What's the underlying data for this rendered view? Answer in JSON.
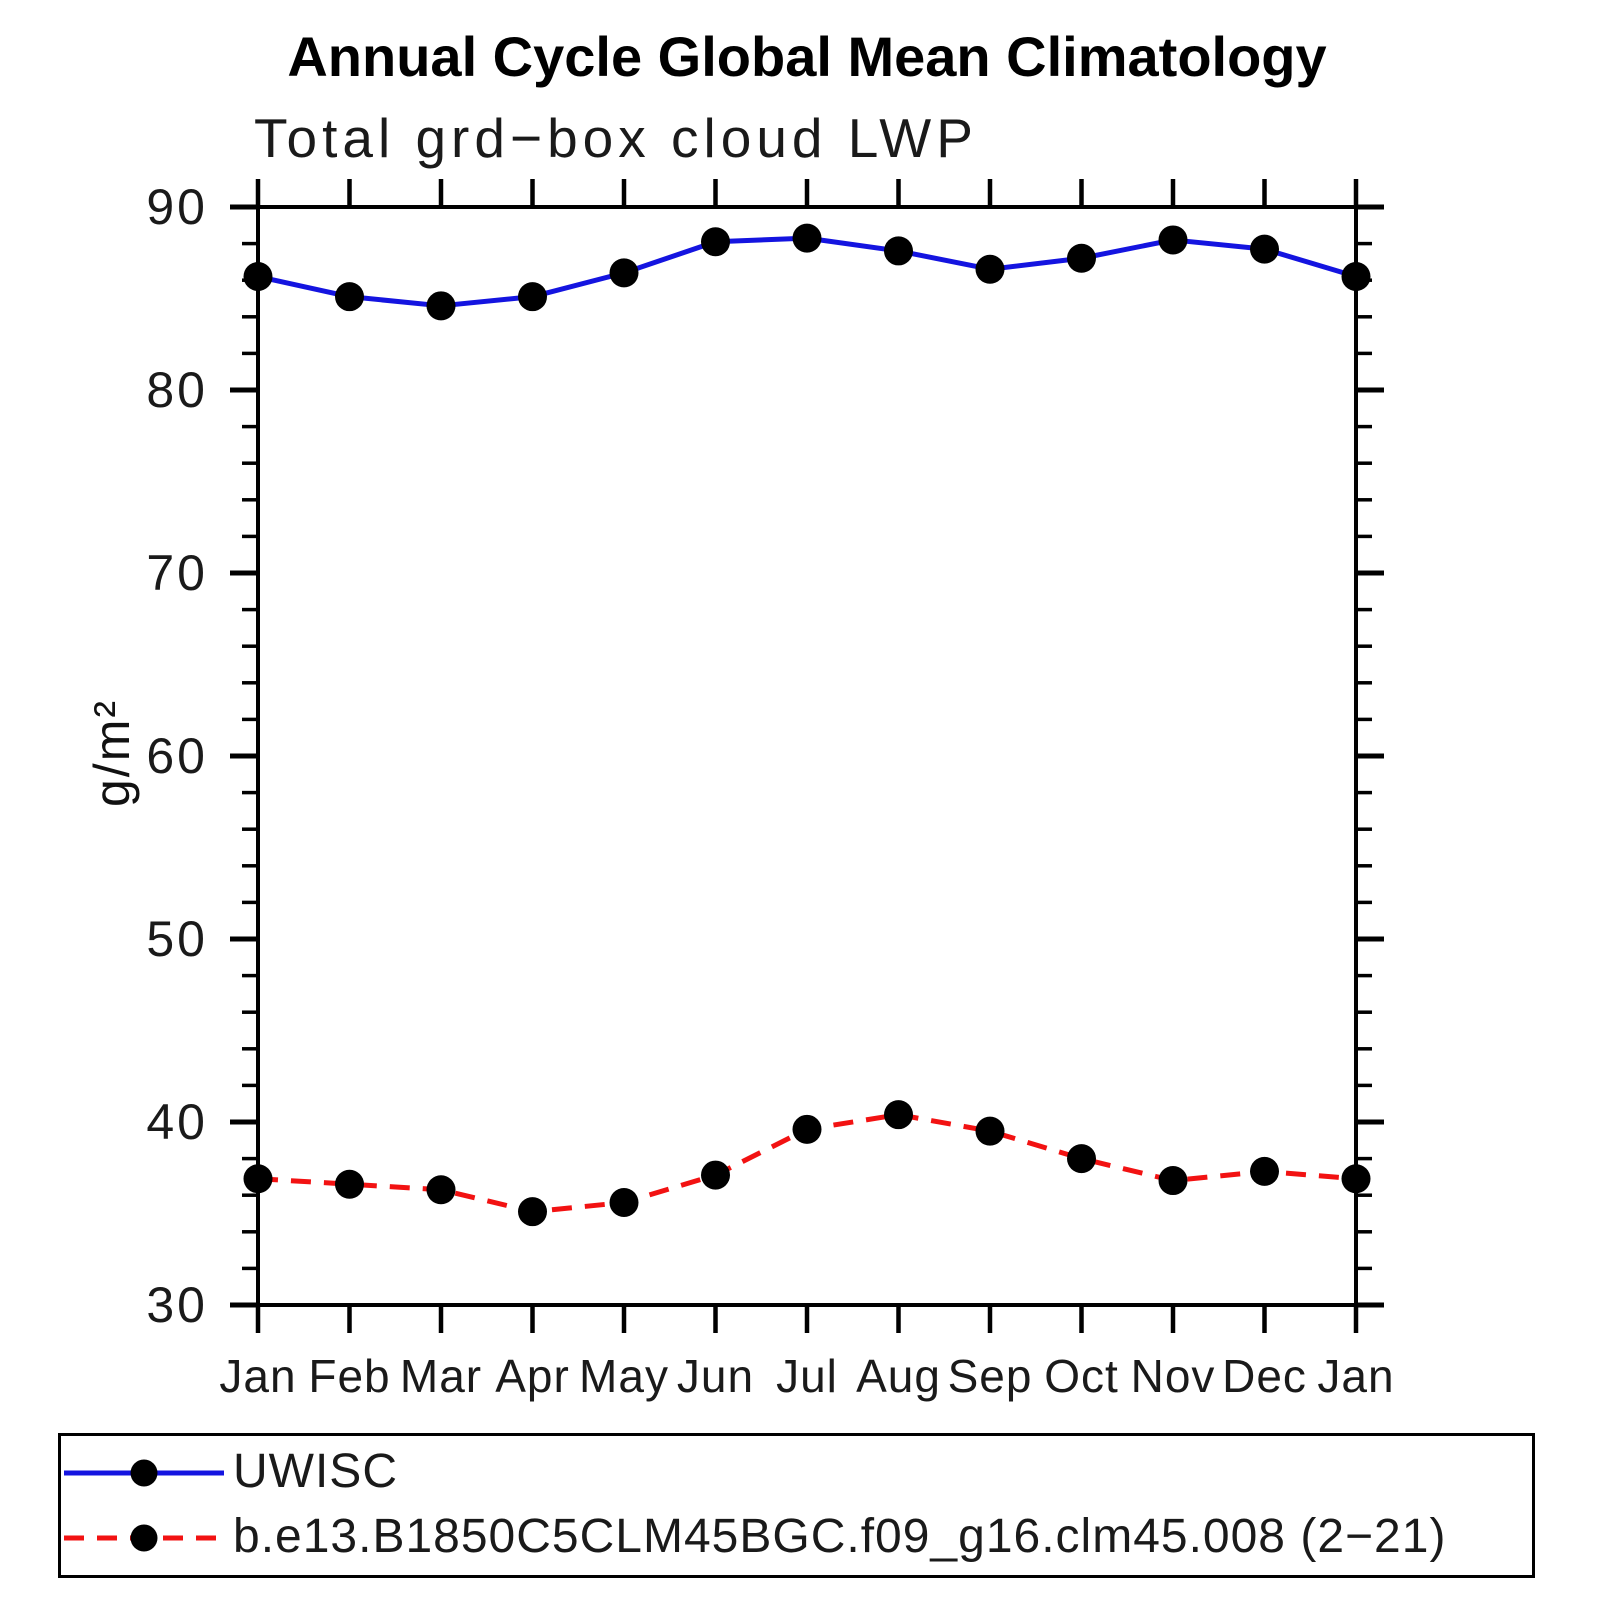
{
  "chart_data": {
    "type": "line",
    "title": "Annual Cycle Global Mean Climatology",
    "subtitle": "Total grd−box cloud LWP",
    "xlabel": "",
    "ylabel": "g/m²",
    "categories": [
      "Jan",
      "Feb",
      "Mar",
      "Apr",
      "May",
      "Jun",
      "Jul",
      "Aug",
      "Sep",
      "Oct",
      "Nov",
      "Dec",
      "Jan"
    ],
    "ylim": [
      30,
      90
    ],
    "ytick_major": [
      30,
      40,
      50,
      60,
      70,
      80,
      90
    ],
    "ytick_minor_step": 2,
    "grid": false,
    "legend_position": "bottom-left-box",
    "axis_color": "#000000",
    "marker_color": "#000000",
    "series": [
      {
        "name": "UWISC",
        "line_color": "#1414e0",
        "line_style": "solid",
        "marker": "circle",
        "values": [
          86.2,
          85.1,
          84.6,
          85.1,
          86.4,
          88.1,
          88.3,
          87.6,
          86.6,
          87.2,
          88.2,
          87.7,
          86.2
        ]
      },
      {
        "name": "b.e13.B1850C5CLM45BGC.f09_g16.clm45.008 (2−21)",
        "line_color": "#f21212",
        "line_style": "dashed",
        "marker": "circle",
        "values": [
          36.9,
          36.6,
          36.3,
          35.1,
          35.6,
          37.1,
          39.6,
          40.4,
          39.5,
          38.0,
          36.8,
          37.3,
          36.9
        ]
      }
    ]
  }
}
